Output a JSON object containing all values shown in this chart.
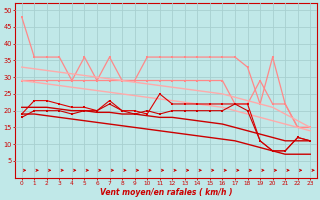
{
  "x": [
    0,
    1,
    2,
    3,
    4,
    5,
    6,
    7,
    8,
    9,
    10,
    11,
    12,
    13,
    14,
    15,
    16,
    17,
    18,
    19,
    20,
    21,
    22,
    23
  ],
  "background_color": "#c0e8e8",
  "grid_color": "#a8d0d0",
  "xlabel": "Vent moyen/en rafales ( km/h )",
  "xlabel_color": "#cc0000",
  "ylim": [
    0,
    52
  ],
  "xlim": [
    -0.5,
    23.5
  ],
  "yticks": [
    5,
    10,
    15,
    20,
    25,
    30,
    35,
    40,
    45,
    50
  ],
  "lines": [
    {
      "label": "pink_top_upper",
      "color": "#ff8888",
      "lw": 0.9,
      "marker": "s",
      "markersize": 1.8,
      "y": [
        48,
        36,
        36,
        36,
        29,
        36,
        29,
        36,
        29,
        29,
        36,
        36,
        36,
        36,
        36,
        36,
        36,
        36,
        33,
        22,
        36,
        22,
        15,
        15
      ]
    },
    {
      "label": "pink_top_lower",
      "color": "#ff8888",
      "lw": 0.9,
      "marker": "s",
      "markersize": 1.8,
      "y": [
        29,
        29,
        29,
        29,
        29,
        29,
        29,
        29,
        29,
        29,
        29,
        29,
        29,
        29,
        29,
        29,
        29,
        22,
        22,
        29,
        22,
        22,
        15,
        15
      ]
    },
    {
      "label": "pink_diag_upper",
      "color": "#ffaaaa",
      "lw": 1.0,
      "marker": null,
      "markersize": 0,
      "y": [
        33,
        32.5,
        32,
        31.5,
        31,
        30.5,
        30,
        29.5,
        29,
        28.5,
        28,
        27.5,
        27,
        26.5,
        26,
        25.5,
        25,
        24,
        23,
        22,
        21,
        19,
        17,
        15
      ]
    },
    {
      "label": "pink_diag_lower",
      "color": "#ffaaaa",
      "lw": 1.0,
      "marker": null,
      "markersize": 0,
      "y": [
        29,
        28.5,
        28,
        27.5,
        27,
        26.5,
        26,
        25.5,
        25,
        24.5,
        24,
        23.5,
        23,
        22.5,
        22,
        21.5,
        21,
        20,
        19,
        18,
        17,
        16,
        15,
        14
      ]
    },
    {
      "label": "red_markers_main",
      "color": "#dd0000",
      "lw": 0.8,
      "marker": "s",
      "markersize": 1.8,
      "y": [
        19,
        23,
        23,
        22,
        21,
        21,
        20,
        23,
        20,
        20,
        19,
        25,
        22,
        22,
        22,
        22,
        22,
        22,
        22,
        11,
        8,
        8,
        12,
        11
      ]
    },
    {
      "label": "red_diag_upper",
      "color": "#cc0000",
      "lw": 1.0,
      "marker": null,
      "markersize": 0,
      "y": [
        21,
        21,
        21,
        20.5,
        20,
        20,
        19.5,
        19.5,
        19,
        19,
        18.5,
        18,
        18,
        17.5,
        17,
        16.5,
        16,
        15,
        14,
        13,
        12,
        11,
        11,
        11
      ]
    },
    {
      "label": "red_diag_lower",
      "color": "#cc0000",
      "lw": 1.0,
      "marker": null,
      "markersize": 0,
      "y": [
        19,
        19,
        18.5,
        18,
        17.5,
        17,
        16.5,
        16,
        15.5,
        15,
        14.5,
        14,
        13.5,
        13,
        12.5,
        12,
        11.5,
        11,
        10,
        9,
        8,
        7,
        7,
        7
      ]
    },
    {
      "label": "red_markers_lower",
      "color": "#cc0000",
      "lw": 0.8,
      "marker": "s",
      "markersize": 1.8,
      "y": [
        18,
        20,
        20,
        20,
        19,
        20,
        20,
        22,
        20,
        19,
        20,
        19,
        20,
        20,
        20,
        20,
        20,
        22,
        20,
        11,
        8,
        8,
        12,
        11
      ]
    }
  ],
  "arrows_color": "#cc0000"
}
